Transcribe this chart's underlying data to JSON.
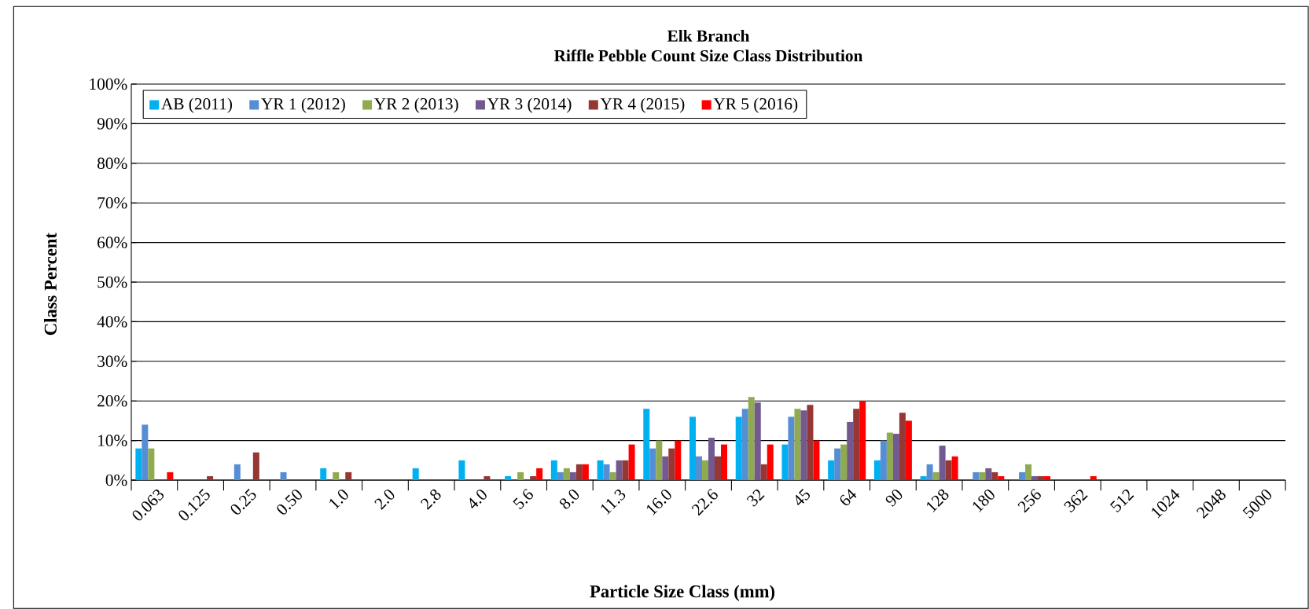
{
  "chart_data": {
    "type": "bar",
    "title": "Elk Branch",
    "subtitle": "Riffle Pebble Count Size Class Distribution",
    "xlabel": "Particle Size Class (mm)",
    "ylabel": "Class Percent",
    "categories": [
      "0.063",
      "0.125",
      "0.25",
      "0.50",
      "1.0",
      "2.0",
      "2.8",
      "4.0",
      "5.6",
      "8.0",
      "11.3",
      "16.0",
      "22.6",
      "32",
      "45",
      "64",
      "90",
      "128",
      "180",
      "256",
      "362",
      "512",
      "1024",
      "2048",
      "5000"
    ],
    "series": [
      {
        "name": "AB (2011)",
        "color": "#00b0f0",
        "values": [
          8,
          0,
          0,
          0,
          3,
          0,
          3,
          5,
          1,
          5,
          5,
          18,
          16,
          16,
          9,
          5,
          5,
          1,
          0,
          0,
          0,
          0,
          0,
          0,
          0
        ]
      },
      {
        "name": "YR 1 (2012)",
        "color": "#558ed5",
        "values": [
          14,
          0,
          4,
          2,
          0,
          0,
          0,
          0,
          0,
          2,
          4,
          8,
          6,
          18,
          16,
          8,
          10,
          4,
          2,
          2,
          0,
          0,
          0,
          0,
          0
        ]
      },
      {
        "name": "YR 2 (2013)",
        "color": "#8faa4f",
        "values": [
          8,
          0,
          0,
          0,
          2,
          0,
          0,
          0,
          2,
          3,
          2,
          10,
          5,
          21,
          18,
          9,
          12,
          2,
          2,
          4,
          0,
          0,
          0,
          0,
          0
        ]
      },
      {
        "name": "YR 3 (2014)",
        "color": "#72598f",
        "values": [
          0,
          0,
          0,
          0,
          0,
          0,
          0,
          0,
          0,
          2,
          5,
          6,
          10.7,
          19.6,
          17.6,
          14.7,
          11.7,
          8.7,
          3,
          1,
          0,
          0,
          0,
          0,
          0
        ]
      },
      {
        "name": "YR 4 (2015)",
        "color": "#953735",
        "values": [
          0,
          1,
          7,
          0,
          2,
          0,
          0,
          1,
          1,
          4,
          5,
          8,
          6,
          4,
          19,
          18,
          17,
          5,
          2,
          1,
          0,
          0,
          0,
          0,
          0
        ]
      },
      {
        "name": "YR 5 (2016)",
        "color": "#ff0000",
        "values": [
          2,
          0,
          0,
          0,
          0,
          0,
          0,
          0,
          3,
          4,
          9,
          10,
          9,
          9,
          10,
          20,
          15,
          6,
          1,
          1,
          1,
          0,
          0,
          0,
          0
        ]
      }
    ],
    "ylim": [
      0,
      100
    ],
    "yticks": [
      {
        "value": 0,
        "label": "0%"
      },
      {
        "value": 10,
        "label": "10%"
      },
      {
        "value": 20,
        "label": "20%"
      },
      {
        "value": 30,
        "label": "30%"
      },
      {
        "value": 40,
        "label": "40%"
      },
      {
        "value": 50,
        "label": "50%"
      },
      {
        "value": 60,
        "label": "60%"
      },
      {
        "value": 70,
        "label": "70%"
      },
      {
        "value": 80,
        "label": "80%"
      },
      {
        "value": 90,
        "label": "90%"
      },
      {
        "value": 100,
        "label": "100%"
      }
    ],
    "grid": "y",
    "legend": "top left"
  }
}
